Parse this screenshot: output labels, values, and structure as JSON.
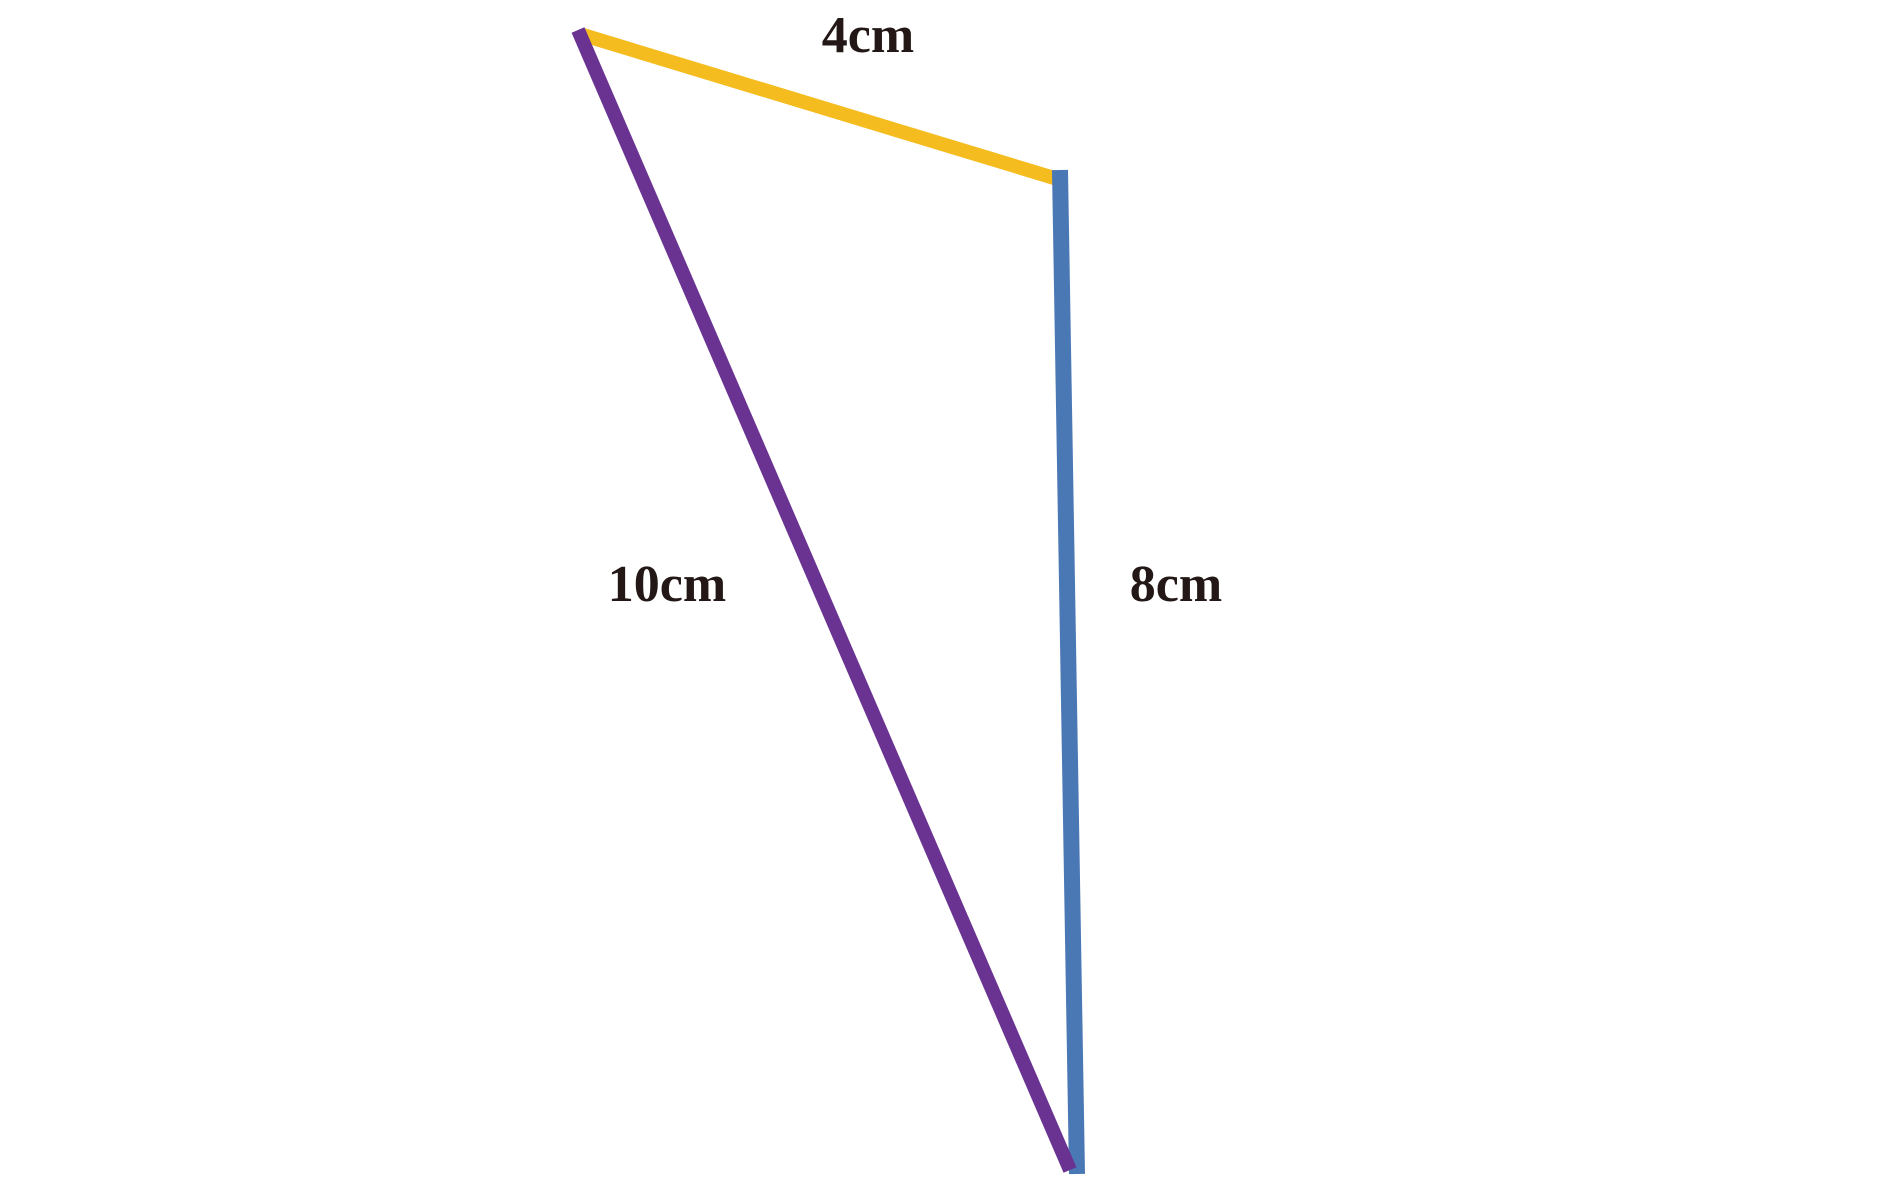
{
  "triangle": {
    "sides": [
      {
        "id": "top",
        "label": "4cm",
        "color": "#F5BC1F"
      },
      {
        "id": "right",
        "label": "8cm",
        "color": "#4A78B5"
      },
      {
        "id": "left",
        "label": "10cm",
        "color": "#6A3291"
      }
    ],
    "label_color": "#231815"
  }
}
